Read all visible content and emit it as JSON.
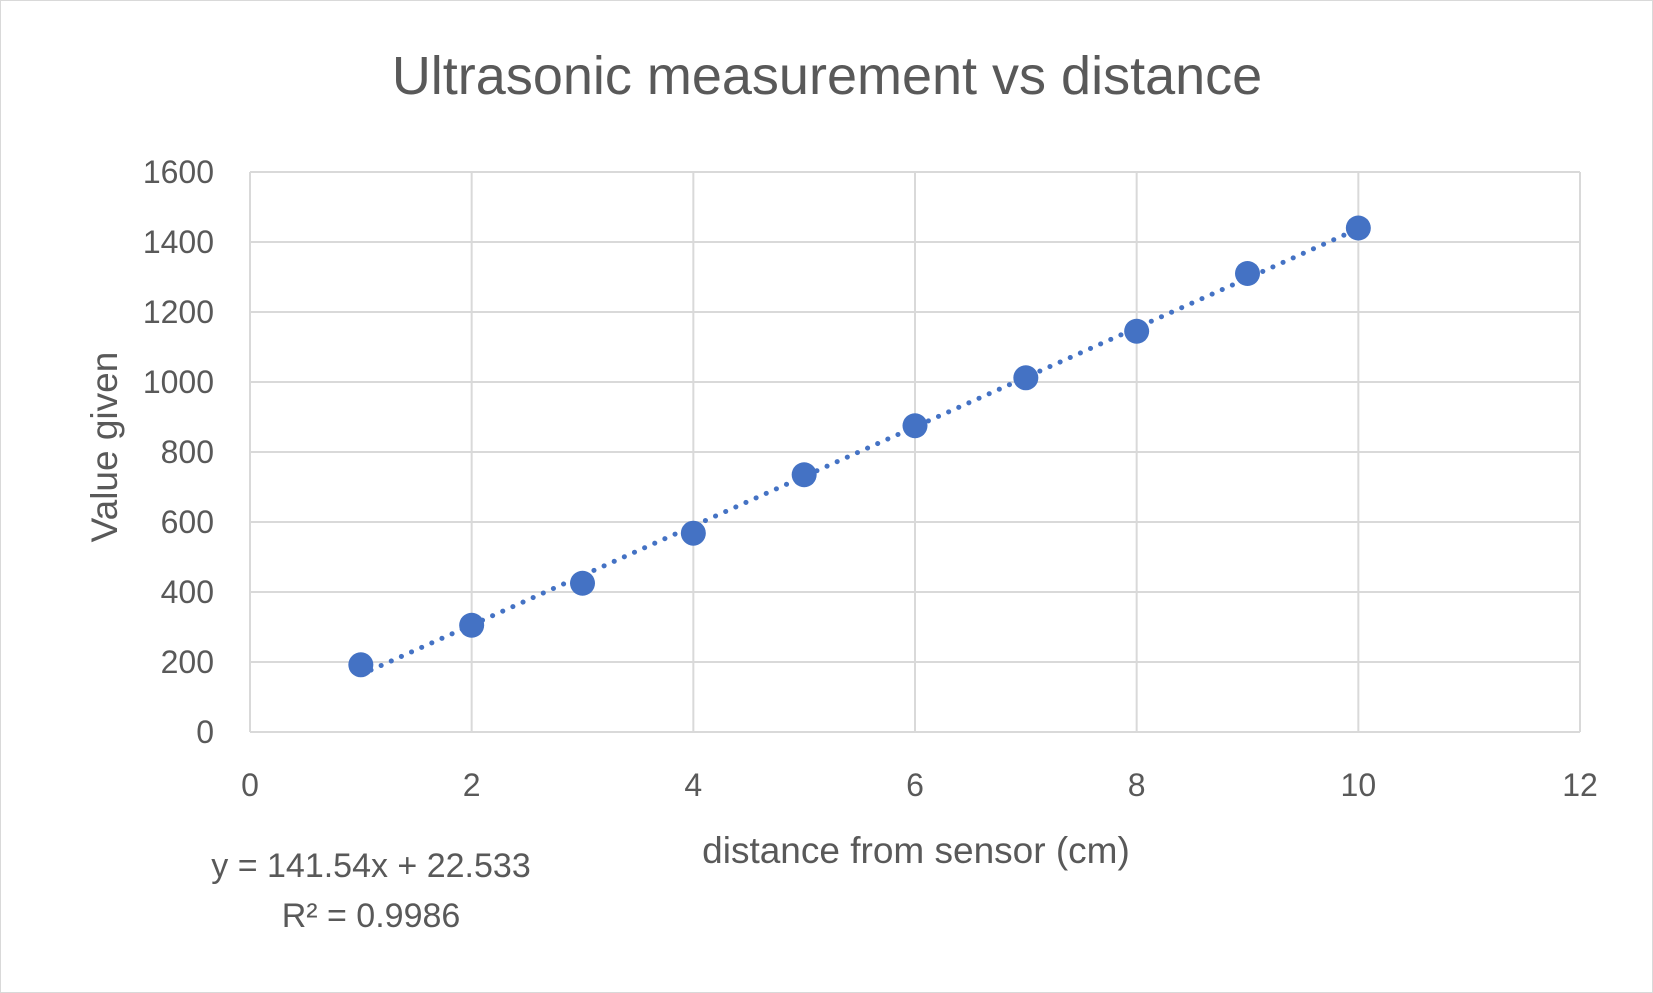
{
  "chart_data": {
    "type": "scatter",
    "title": "Ultrasonic measurement vs distance",
    "xlabel": "distance from sensor (cm)",
    "ylabel": "Value given",
    "xlim": [
      0,
      12
    ],
    "ylim": [
      0,
      1600
    ],
    "x_ticks": [
      0,
      2,
      4,
      6,
      8,
      10,
      12
    ],
    "y_ticks": [
      0,
      200,
      400,
      600,
      800,
      1000,
      1200,
      1400,
      1600
    ],
    "grid": true,
    "legend": "none",
    "series": [
      {
        "color": "#4472c4",
        "points": [
          {
            "x": 1,
            "y": 192
          },
          {
            "x": 2,
            "y": 305
          },
          {
            "x": 3,
            "y": 425
          },
          {
            "x": 4,
            "y": 568
          },
          {
            "x": 5,
            "y": 735
          },
          {
            "x": 6,
            "y": 875
          },
          {
            "x": 7,
            "y": 1012
          },
          {
            "x": 8,
            "y": 1145
          },
          {
            "x": 9,
            "y": 1310
          },
          {
            "x": 10,
            "y": 1440
          }
        ]
      }
    ],
    "trendline": {
      "type": "linear",
      "style": "dotted",
      "color": "#4472c4",
      "slope": 141.54,
      "intercept": 22.533,
      "x_range": [
        1,
        10
      ],
      "equation": "y = 141.54x + 22.533",
      "r_squared": "R² = 0.9986"
    }
  }
}
